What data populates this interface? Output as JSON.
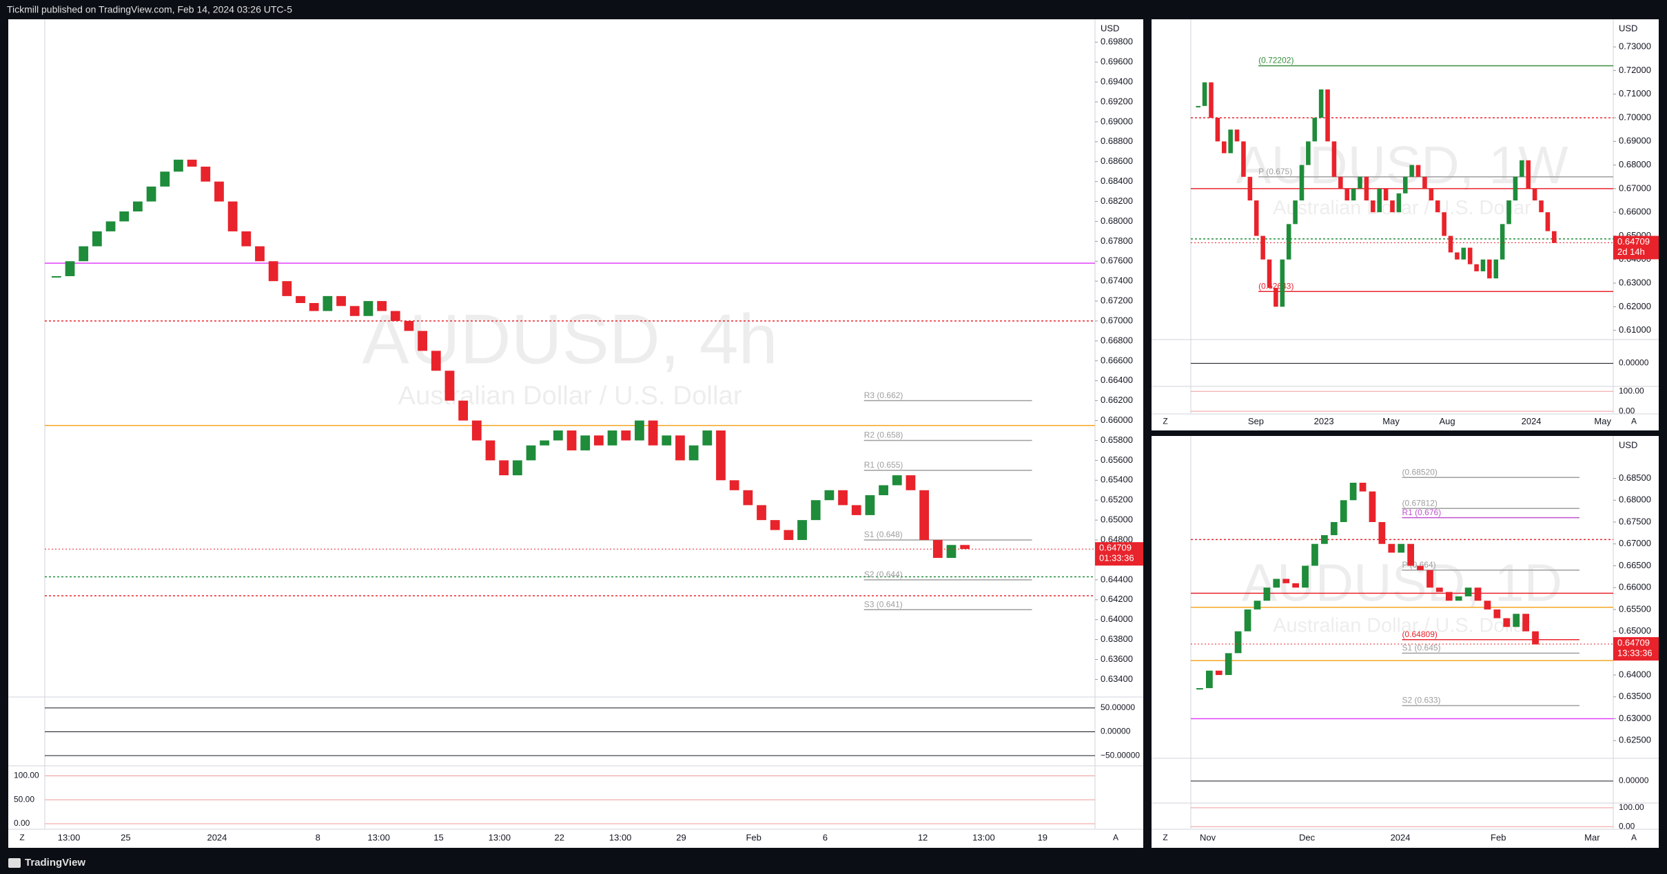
{
  "header": "Tickmill published on TradingView.com, Feb 14, 2024 03:26 UTC-5",
  "footer": "TradingView",
  "buttons": [
    "Z",
    "A"
  ],
  "chart_data": [
    {
      "type": "candle-line",
      "title": "AUDUSD, 4h",
      "subtitle": "Australian Dollar / U.S. Dollar",
      "axis_unit": "USD",
      "up_color": "#1e8c3a",
      "down_color": "#e8232b",
      "ylim": [
        0.6323,
        0.7003
      ],
      "yticks": [
        {
          "value": 0.634,
          "label": "0.63400"
        },
        {
          "value": 0.636,
          "label": "0.63600"
        },
        {
          "value": 0.638,
          "label": "0.63800"
        },
        {
          "value": 0.64,
          "label": "0.64000"
        },
        {
          "value": 0.642,
          "label": "0.64200"
        },
        {
          "value": 0.644,
          "label": "0.64400"
        },
        {
          "value": 0.646,
          "label": "0.64600"
        },
        {
          "value": 0.648,
          "label": "0.64800"
        },
        {
          "value": 0.65,
          "label": "0.65000"
        },
        {
          "value": 0.652,
          "label": "0.65200"
        },
        {
          "value": 0.654,
          "label": "0.65400"
        },
        {
          "value": 0.656,
          "label": "0.65600"
        },
        {
          "value": 0.658,
          "label": "0.65800"
        },
        {
          "value": 0.66,
          "label": "0.66000"
        },
        {
          "value": 0.662,
          "label": "0.66200"
        },
        {
          "value": 0.664,
          "label": "0.66400"
        },
        {
          "value": 0.666,
          "label": "0.66600"
        },
        {
          "value": 0.668,
          "label": "0.66800"
        },
        {
          "value": 0.67,
          "label": "0.67000"
        },
        {
          "value": 0.672,
          "label": "0.67200"
        },
        {
          "value": 0.674,
          "label": "0.67400"
        },
        {
          "value": 0.676,
          "label": "0.67600"
        },
        {
          "value": 0.678,
          "label": "0.67800"
        },
        {
          "value": 0.68,
          "label": "0.68000"
        },
        {
          "value": 0.682,
          "label": "0.68200"
        },
        {
          "value": 0.684,
          "label": "0.68400"
        },
        {
          "value": 0.686,
          "label": "0.68600"
        },
        {
          "value": 0.688,
          "label": "0.68800"
        },
        {
          "value": 0.69,
          "label": "0.69000"
        },
        {
          "value": 0.692,
          "label": "0.69200"
        },
        {
          "value": 0.694,
          "label": "0.69400"
        },
        {
          "value": 0.696,
          "label": "0.69600"
        },
        {
          "value": 0.698,
          "label": "0.69800"
        }
      ],
      "values": [
        0.6745,
        0.676,
        0.6775,
        0.679,
        0.68,
        0.681,
        0.682,
        0.6835,
        0.685,
        0.6862,
        0.6855,
        0.684,
        0.682,
        0.679,
        0.6775,
        0.676,
        0.674,
        0.6725,
        0.6718,
        0.671,
        0.6725,
        0.6715,
        0.6705,
        0.672,
        0.671,
        0.67,
        0.669,
        0.667,
        0.665,
        0.662,
        0.66,
        0.658,
        0.656,
        0.6545,
        0.656,
        0.6575,
        0.658,
        0.659,
        0.657,
        0.6585,
        0.6575,
        0.659,
        0.658,
        0.66,
        0.6575,
        0.6585,
        0.656,
        0.6575,
        0.659,
        0.654,
        0.653,
        0.6515,
        0.65,
        0.649,
        0.648,
        0.65,
        0.652,
        0.653,
        0.6515,
        0.6505,
        0.6525,
        0.6535,
        0.6545,
        0.653,
        0.648,
        0.6462,
        0.6475,
        0.6471
      ],
      "levels": [
        {
          "value": 0.6758,
          "color": "#e040fb"
        },
        {
          "value": 0.67,
          "color": "#e8232b",
          "dashed": true
        },
        {
          "value": 0.6595,
          "color": "#f5a623"
        },
        {
          "value": 0.6443,
          "color": "#1e8c3a",
          "dashed": true
        },
        {
          "value": 0.6424,
          "color": "#e8232b",
          "dashed": true
        },
        {
          "value": 0.662,
          "label": "R3 (0.662)",
          "color": "#9e9e9e"
        },
        {
          "value": 0.658,
          "label": "R2 (0.658)",
          "color": "#9e9e9e"
        },
        {
          "value": 0.655,
          "label": "R1 (0.655)",
          "color": "#9e9e9e"
        },
        {
          "value": 0.648,
          "label": "S1 (0.648)",
          "color": "#9e9e9e"
        },
        {
          "value": 0.644,
          "label": "S2 (0.644)",
          "color": "#9e9e9e"
        },
        {
          "value": 0.641,
          "label": "S3 (0.641)",
          "color": "#9e9e9e"
        }
      ],
      "last": {
        "value": 0.64709,
        "label": "0.64709"
      },
      "countdown": "01:33:36",
      "time_labels": [
        "13:00",
        "25",
        "2024",
        "8",
        "13:00",
        "15",
        "13:00",
        "22",
        "13:00",
        "29",
        "Feb",
        "6",
        "12",
        "13:00",
        "19"
      ],
      "osc": {
        "ylim": [
          -70,
          70
        ],
        "yticks": [
          {
            "value": 50,
            "label": "50.00000"
          },
          {
            "value": 0,
            "label": "0.00000"
          },
          {
            "value": -50,
            "label": "−50.00000"
          }
        ]
      },
      "stoch": {
        "ylim": [
          -10,
          118
        ],
        "yticks": [
          {
            "value": 100,
            "label": "100.00"
          },
          {
            "value": 50,
            "label": "50.00"
          },
          {
            "value": 0,
            "label": "0.00"
          }
        ]
      }
    },
    {
      "type": "candle-line",
      "title": "AUDUSD, 1W",
      "subtitle": "Australian Dollar / U.S. Dollar",
      "axis_unit": "USD",
      "up_color": "#1e8c3a",
      "down_color": "#e8232b",
      "ylim": [
        0.6064,
        0.7417
      ],
      "yticks": [
        {
          "value": 0.61,
          "label": "0.61000"
        },
        {
          "value": 0.62,
          "label": "0.62000"
        },
        {
          "value": 0.63,
          "label": "0.63000"
        },
        {
          "value": 0.64,
          "label": "0.64000"
        },
        {
          "value": 0.65,
          "label": "0.65000"
        },
        {
          "value": 0.66,
          "label": "0.66000"
        },
        {
          "value": 0.67,
          "label": "0.67000"
        },
        {
          "value": 0.68,
          "label": "0.68000"
        },
        {
          "value": 0.69,
          "label": "0.69000"
        },
        {
          "value": 0.7,
          "label": "0.70000"
        },
        {
          "value": 0.71,
          "label": "0.71000"
        },
        {
          "value": 0.72,
          "label": "0.72000"
        },
        {
          "value": 0.73,
          "label": "0.73000"
        }
      ],
      "values": [
        0.705,
        0.715,
        0.7,
        0.69,
        0.685,
        0.695,
        0.69,
        0.675,
        0.665,
        0.65,
        0.64,
        0.628,
        0.62,
        0.64,
        0.655,
        0.665,
        0.68,
        0.69,
        0.7,
        0.712,
        0.69,
        0.675,
        0.67,
        0.665,
        0.67,
        0.675,
        0.665,
        0.66,
        0.67,
        0.665,
        0.66,
        0.668,
        0.675,
        0.68,
        0.675,
        0.67,
        0.665,
        0.66,
        0.65,
        0.643,
        0.64,
        0.645,
        0.638,
        0.635,
        0.64,
        0.632,
        0.64,
        0.655,
        0.665,
        0.675,
        0.682,
        0.67,
        0.665,
        0.66,
        0.652,
        0.647
      ],
      "levels": [
        {
          "value": 0.72202,
          "label": "(0.72202)",
          "color": "#388e3c"
        },
        {
          "value": 0.7,
          "color": "#e8232b",
          "dashed": true
        },
        {
          "value": 0.675,
          "label": "P (0.675)",
          "color": "#9e9e9e"
        },
        {
          "value": 0.67,
          "color": "#e8232b"
        },
        {
          "value": 0.6487,
          "color": "#1e8c3a",
          "dashed": true
        },
        {
          "value": 0.62643,
          "label": "(0.62643)",
          "color": "#e8232b"
        }
      ],
      "last": {
        "value": 0.64709,
        "label": "0.64709"
      },
      "countdown": "2d 14h",
      "time_labels": [
        "Sep",
        "2023",
        "May",
        "Aug",
        "2024",
        "May"
      ],
      "osc": {
        "ylim": [
          -0.02,
          0.02
        ],
        "yticks": [
          {
            "value": 0,
            "label": "0.00000"
          }
        ]
      },
      "stoch": {
        "ylim": [
          -10,
          118
        ],
        "yticks": [
          {
            "value": 100,
            "label": "100.00"
          },
          {
            "value": 0,
            "label": "0.00"
          }
        ]
      }
    },
    {
      "type": "candle-line",
      "title": "AUDUSD, 1D",
      "subtitle": "Australian Dollar / U.S. Dollar",
      "axis_unit": "USD",
      "up_color": "#1e8c3a",
      "down_color": "#e8232b",
      "ylim": [
        0.6211,
        0.6947
      ],
      "yticks": [
        {
          "value": 0.625,
          "label": "0.62500"
        },
        {
          "value": 0.63,
          "label": "0.63000"
        },
        {
          "value": 0.635,
          "label": "0.63500"
        },
        {
          "value": 0.64,
          "label": "0.64000"
        },
        {
          "value": 0.645,
          "label": "0.64500"
        },
        {
          "value": 0.65,
          "label": "0.65000"
        },
        {
          "value": 0.655,
          "label": "0.65500"
        },
        {
          "value": 0.66,
          "label": "0.66000"
        },
        {
          "value": 0.665,
          "label": "0.66500"
        },
        {
          "value": 0.67,
          "label": "0.67000"
        },
        {
          "value": 0.675,
          "label": "0.67500"
        },
        {
          "value": 0.68,
          "label": "0.68000"
        },
        {
          "value": 0.685,
          "label": "0.68500"
        }
      ],
      "values": [
        0.637,
        0.641,
        0.64,
        0.645,
        0.65,
        0.655,
        0.657,
        0.66,
        0.662,
        0.661,
        0.66,
        0.665,
        0.67,
        0.672,
        0.675,
        0.68,
        0.684,
        0.682,
        0.675,
        0.67,
        0.668,
        0.67,
        0.665,
        0.664,
        0.66,
        0.659,
        0.657,
        0.658,
        0.66,
        0.657,
        0.655,
        0.653,
        0.651,
        0.654,
        0.65,
        0.647
      ],
      "levels": [
        {
          "value": 0.6852,
          "label": "(0.68520)",
          "color": "#9e9e9e"
        },
        {
          "value": 0.676,
          "label": "R1 (0.676)",
          "color": "#c050d0"
        },
        {
          "value": 0.67812,
          "label": "(0.67812)",
          "color": "#9e9e9e"
        },
        {
          "value": 0.671,
          "color": "#e8232b",
          "dashed": true
        },
        {
          "value": 0.664,
          "label": "P (0.664)",
          "color": "#9e9e9e"
        },
        {
          "value": 0.6587,
          "color": "#e8232b"
        },
        {
          "value": 0.6555,
          "color": "#f5a623"
        },
        {
          "value": 0.64809,
          "label": "(0.64809)",
          "color": "#e8232b"
        },
        {
          "value": 0.645,
          "label": "S1 (0.645)",
          "color": "#9e9e9e"
        },
        {
          "value": 0.6433,
          "color": "#f5a623"
        },
        {
          "value": 0.633,
          "label": "S2 (0.633)",
          "color": "#9e9e9e"
        },
        {
          "value": 0.63,
          "color": "#e040fb"
        }
      ],
      "last": {
        "value": 0.64709,
        "label": "0.64709"
      },
      "countdown": "13:33:36",
      "time_labels": [
        "Nov",
        "Dec",
        "2024",
        "Feb",
        "Mar"
      ],
      "osc": {
        "ylim": [
          -0.01,
          0.01
        ],
        "yticks": [
          {
            "value": 0,
            "label": "0.00000"
          }
        ]
      },
      "stoch": {
        "ylim": [
          -10,
          118
        ],
        "yticks": [
          {
            "value": 100,
            "label": "100.00"
          },
          {
            "value": 0,
            "label": "0.00"
          }
        ]
      }
    }
  ]
}
